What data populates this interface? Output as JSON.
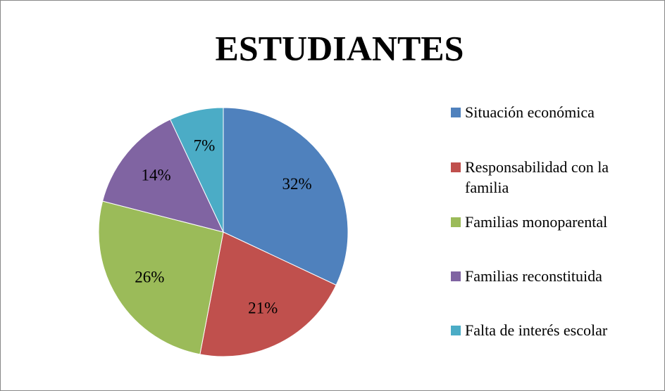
{
  "chart_data": {
    "type": "pie",
    "title": "ESTUDIANTES",
    "categories": [
      "Situación económica",
      "Responsabilidad con la familia",
      "Familias monoparental",
      "Familias reconstituida",
      "Falta de interés escolar"
    ],
    "values": [
      32,
      21,
      26,
      14,
      7
    ],
    "value_labels": [
      "32%",
      "21%",
      "26%",
      "14%",
      "7%"
    ],
    "colors": [
      "#4f81bd",
      "#c0504d",
      "#9bbb59",
      "#8064a2",
      "#4bacc6"
    ],
    "legend": "right"
  }
}
